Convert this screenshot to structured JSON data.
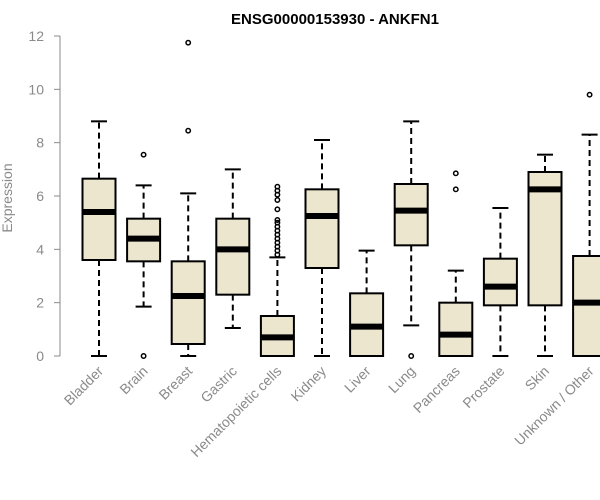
{
  "chart_data": {
    "type": "boxplot",
    "title": "ENSG00000153930 - ANKFN1",
    "xlabel": "",
    "ylabel": "Expression",
    "ylim": [
      0,
      12
    ],
    "yticks": [
      0,
      2,
      4,
      6,
      8,
      10,
      12
    ],
    "grid": false,
    "colors": {
      "box_fill": "#ede6cf",
      "box_stroke": "#000000",
      "axis": "#8a8a8a",
      "text": "#8a8a8a"
    },
    "categories": [
      "Bladder",
      "Brain",
      "Breast",
      "Gastric",
      "Hematopoietic cells",
      "Kidney",
      "Liver",
      "Lung",
      "Pancreas",
      "Prostate",
      "Skin",
      "Unknown / Other"
    ],
    "boxes": [
      {
        "name": "Bladder",
        "whisker_low": 0.0,
        "q1": 3.6,
        "median": 5.4,
        "q3": 6.65,
        "whisker_high": 8.8,
        "outliers": []
      },
      {
        "name": "Brain",
        "whisker_low": 1.85,
        "q1": 3.55,
        "median": 4.4,
        "q3": 5.15,
        "whisker_high": 6.4,
        "outliers": [
          0.0,
          7.55
        ]
      },
      {
        "name": "Breast",
        "whisker_low": 0.0,
        "q1": 0.45,
        "median": 2.25,
        "q3": 3.55,
        "whisker_high": 6.1,
        "outliers": [
          8.45,
          11.75
        ]
      },
      {
        "name": "Gastric",
        "whisker_low": 1.05,
        "q1": 2.3,
        "median": 4.0,
        "q3": 5.15,
        "whisker_high": 7.0,
        "outliers": []
      },
      {
        "name": "Hematopoietic cells",
        "whisker_low": 0.0,
        "q1": 0.0,
        "median": 0.7,
        "q3": 1.5,
        "whisker_high": 3.7,
        "outliers": [
          3.8,
          3.95,
          4.1,
          4.25,
          4.4,
          4.55,
          4.7,
          4.85,
          5.0,
          5.1,
          5.5,
          5.85,
          6.05,
          6.2,
          6.35
        ]
      },
      {
        "name": "Kidney",
        "whisker_low": 0.0,
        "q1": 3.3,
        "median": 5.25,
        "q3": 6.25,
        "whisker_high": 8.1,
        "outliers": []
      },
      {
        "name": "Liver",
        "whisker_low": 0.0,
        "q1": 0.0,
        "median": 1.1,
        "q3": 2.35,
        "whisker_high": 3.95,
        "outliers": []
      },
      {
        "name": "Lung",
        "whisker_low": 1.15,
        "q1": 4.15,
        "median": 5.45,
        "q3": 6.45,
        "whisker_high": 8.8,
        "outliers": [
          0.0
        ]
      },
      {
        "name": "Pancreas",
        "whisker_low": 0.0,
        "q1": 0.0,
        "median": 0.8,
        "q3": 2.0,
        "whisker_high": 3.2,
        "outliers": [
          6.25,
          6.85
        ]
      },
      {
        "name": "Prostate",
        "whisker_low": 0.0,
        "q1": 1.9,
        "median": 2.6,
        "q3": 3.65,
        "whisker_high": 5.55,
        "outliers": []
      },
      {
        "name": "Skin",
        "whisker_low": 0.0,
        "q1": 1.9,
        "median": 6.25,
        "q3": 6.9,
        "whisker_high": 7.55,
        "outliers": []
      },
      {
        "name": "Unknown / Other",
        "whisker_low": 0.0,
        "q1": 0.0,
        "median": 2.0,
        "q3": 3.75,
        "whisker_high": 8.3,
        "outliers": [
          9.8
        ]
      }
    ]
  }
}
